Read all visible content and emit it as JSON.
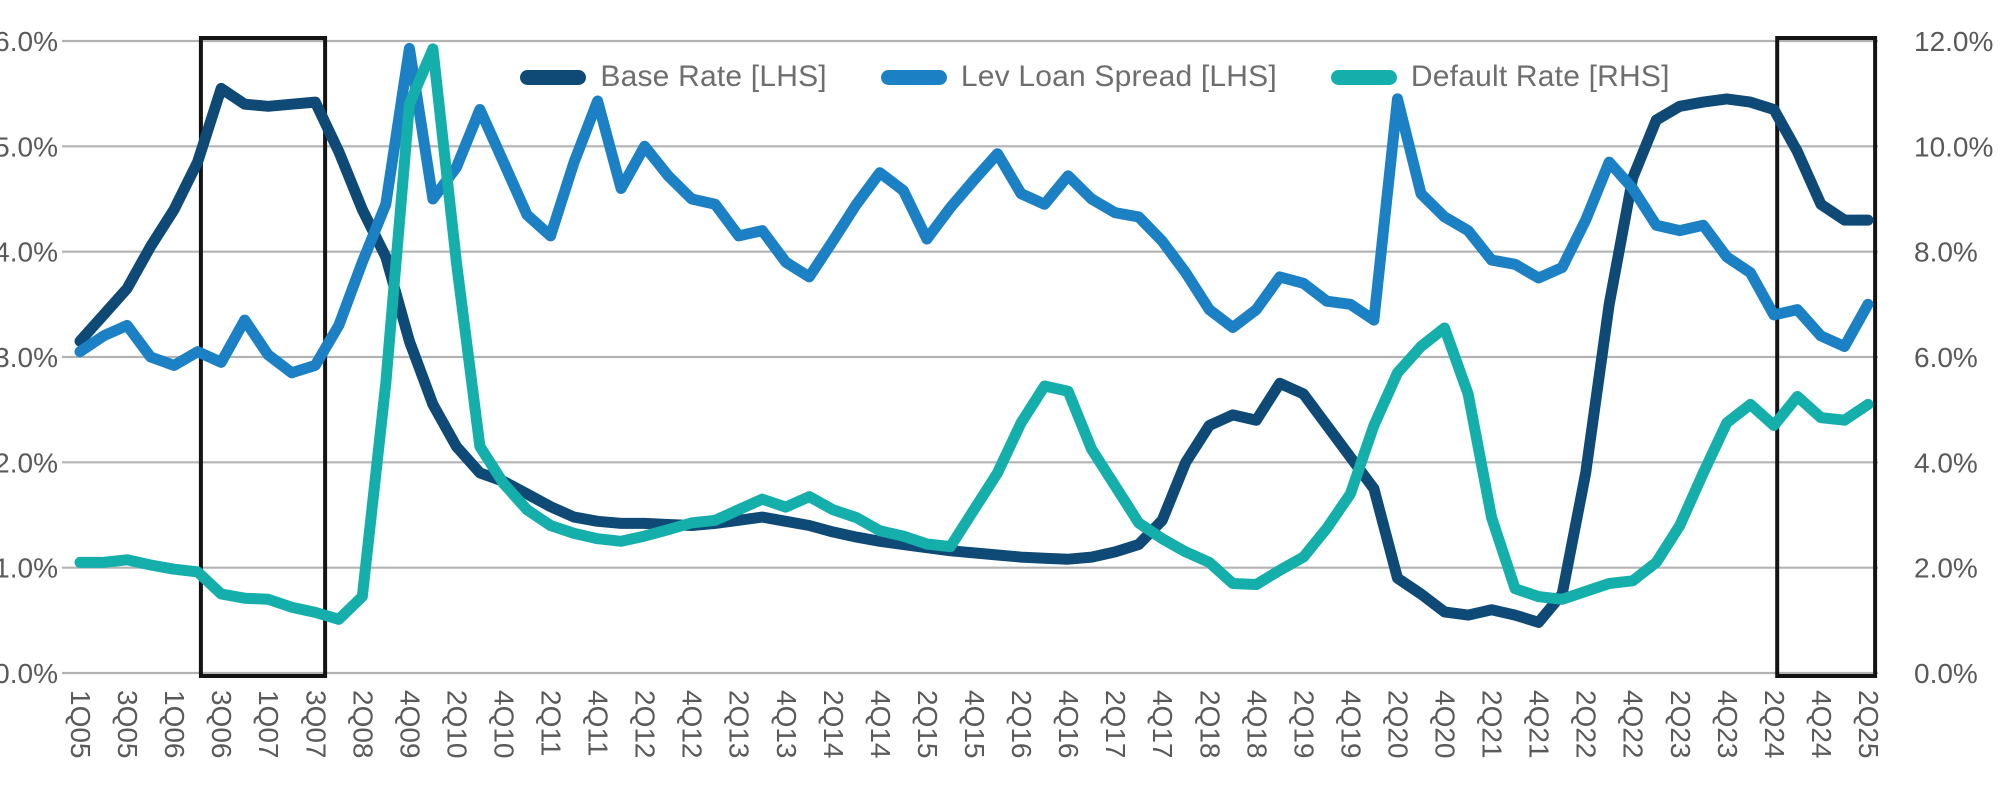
{
  "chart_data": {
    "type": "line",
    "title": "",
    "x_tick_labels": [
      "1Q05",
      "3Q05",
      "1Q06",
      "3Q06",
      "1Q07",
      "3Q07",
      "2Q08",
      "4Q09",
      "2Q10",
      "4Q10",
      "2Q11",
      "4Q11",
      "2Q12",
      "4Q12",
      "2Q13",
      "4Q13",
      "2Q14",
      "4Q14",
      "2Q15",
      "4Q15",
      "2Q16",
      "4Q16",
      "2Q17",
      "4Q17",
      "2Q18",
      "4Q18",
      "2Q19",
      "4Q19",
      "2Q20",
      "4Q20",
      "2Q21",
      "4Q21",
      "2Q22",
      "4Q22",
      "2Q23",
      "4Q23",
      "2Q24",
      "4Q24",
      "2Q25"
    ],
    "points_per_label_interval": 2,
    "left_axis": {
      "ticks_top_down": [
        "6.0%",
        "5.0%",
        "4.0%",
        "3.0%",
        "2.0%",
        "1.0%",
        "0.0%"
      ],
      "min": 0,
      "max": 6
    },
    "right_axis": {
      "ticks_top_down": [
        "12.0%",
        "10.0%",
        "8.0%",
        "6.0%",
        "4.0%",
        "2.0%",
        "0.0%"
      ],
      "min": 0,
      "max": 12
    },
    "grid": "horizontal-only",
    "legend_position": "top-center",
    "series": [
      {
        "name": "Base Rate [LHS]",
        "axis": "left",
        "color": "#0e4a75",
        "values": [
          3.15,
          3.4,
          3.65,
          4.05,
          4.4,
          4.85,
          5.55,
          5.4,
          5.38,
          5.4,
          5.42,
          4.95,
          4.4,
          3.95,
          3.15,
          2.55,
          2.15,
          1.9,
          1.82,
          1.7,
          1.58,
          1.48,
          1.44,
          1.42,
          1.42,
          1.41,
          1.4,
          1.42,
          1.45,
          1.48,
          1.44,
          1.4,
          1.34,
          1.29,
          1.25,
          1.22,
          1.19,
          1.16,
          1.14,
          1.12,
          1.1,
          1.09,
          1.08,
          1.1,
          1.15,
          1.22,
          1.45,
          2.0,
          2.35,
          2.45,
          2.4,
          2.75,
          2.65,
          2.35,
          2.05,
          1.75,
          0.9,
          0.75,
          0.58,
          0.55,
          0.6,
          0.55,
          0.48,
          0.75,
          1.9,
          3.5,
          4.7,
          5.25,
          5.38,
          5.42,
          5.45,
          5.42,
          5.35,
          4.95,
          4.45,
          4.3,
          4.3
        ]
      },
      {
        "name": "Lev Loan Spread [LHS]",
        "axis": "left",
        "color": "#1b80c4",
        "values": [
          3.05,
          3.2,
          3.3,
          3.0,
          2.92,
          3.05,
          2.95,
          3.35,
          3.02,
          2.85,
          2.92,
          3.3,
          3.9,
          4.45,
          5.93,
          4.5,
          4.8,
          5.35,
          4.85,
          4.35,
          4.15,
          4.85,
          5.43,
          4.6,
          5.0,
          4.72,
          4.5,
          4.45,
          4.15,
          4.2,
          3.9,
          3.76,
          4.1,
          4.45,
          4.75,
          4.58,
          4.12,
          4.42,
          4.68,
          4.93,
          4.55,
          4.45,
          4.72,
          4.5,
          4.37,
          4.33,
          4.1,
          3.8,
          3.45,
          3.28,
          3.45,
          3.76,
          3.7,
          3.53,
          3.5,
          3.35,
          5.45,
          4.55,
          4.33,
          4.2,
          3.92,
          3.88,
          3.75,
          3.85,
          4.3,
          4.85,
          4.6,
          4.25,
          4.2,
          4.25,
          3.95,
          3.8,
          3.4,
          3.45,
          3.2,
          3.1,
          3.5
        ]
      },
      {
        "name": "Default Rate [RHS]",
        "axis": "right",
        "color": "#14aeab",
        "values": [
          2.1,
          2.1,
          2.15,
          2.05,
          1.97,
          1.92,
          1.5,
          1.42,
          1.4,
          1.25,
          1.15,
          1.02,
          1.45,
          5.5,
          10.8,
          11.85,
          7.8,
          4.3,
          3.6,
          3.1,
          2.8,
          2.65,
          2.55,
          2.5,
          2.6,
          2.72,
          2.85,
          2.9,
          3.1,
          3.3,
          3.15,
          3.35,
          3.1,
          2.95,
          2.7,
          2.6,
          2.45,
          2.4,
          3.1,
          3.8,
          4.75,
          5.45,
          5.35,
          4.25,
          3.55,
          2.85,
          2.55,
          2.3,
          2.1,
          1.7,
          1.68,
          1.95,
          2.2,
          2.75,
          3.4,
          4.7,
          5.7,
          6.2,
          6.55,
          5.3,
          2.95,
          1.6,
          1.45,
          1.4,
          1.55,
          1.7,
          1.75,
          2.1,
          2.8,
          3.8,
          4.75,
          5.1,
          4.7,
          5.25,
          4.85,
          4.8,
          5.1
        ]
      }
    ],
    "highlight_boxes": [
      {
        "start_label_index": 2.57,
        "end_label_index": 5.21
      },
      {
        "start_label_index": 36.07,
        "end_label_index": 38.15
      }
    ],
    "colors": {
      "gridline": "#b3b3b3",
      "axis_text": "#5a5a5a",
      "x_text": "#5a5a5a",
      "highlight_stroke": "#141414",
      "background": "#ffffff"
    }
  },
  "legend": {
    "items": [
      {
        "label": "Base Rate [LHS]"
      },
      {
        "label": "Lev Loan Spread [LHS]"
      },
      {
        "label": "Default Rate [RHS]"
      }
    ]
  }
}
